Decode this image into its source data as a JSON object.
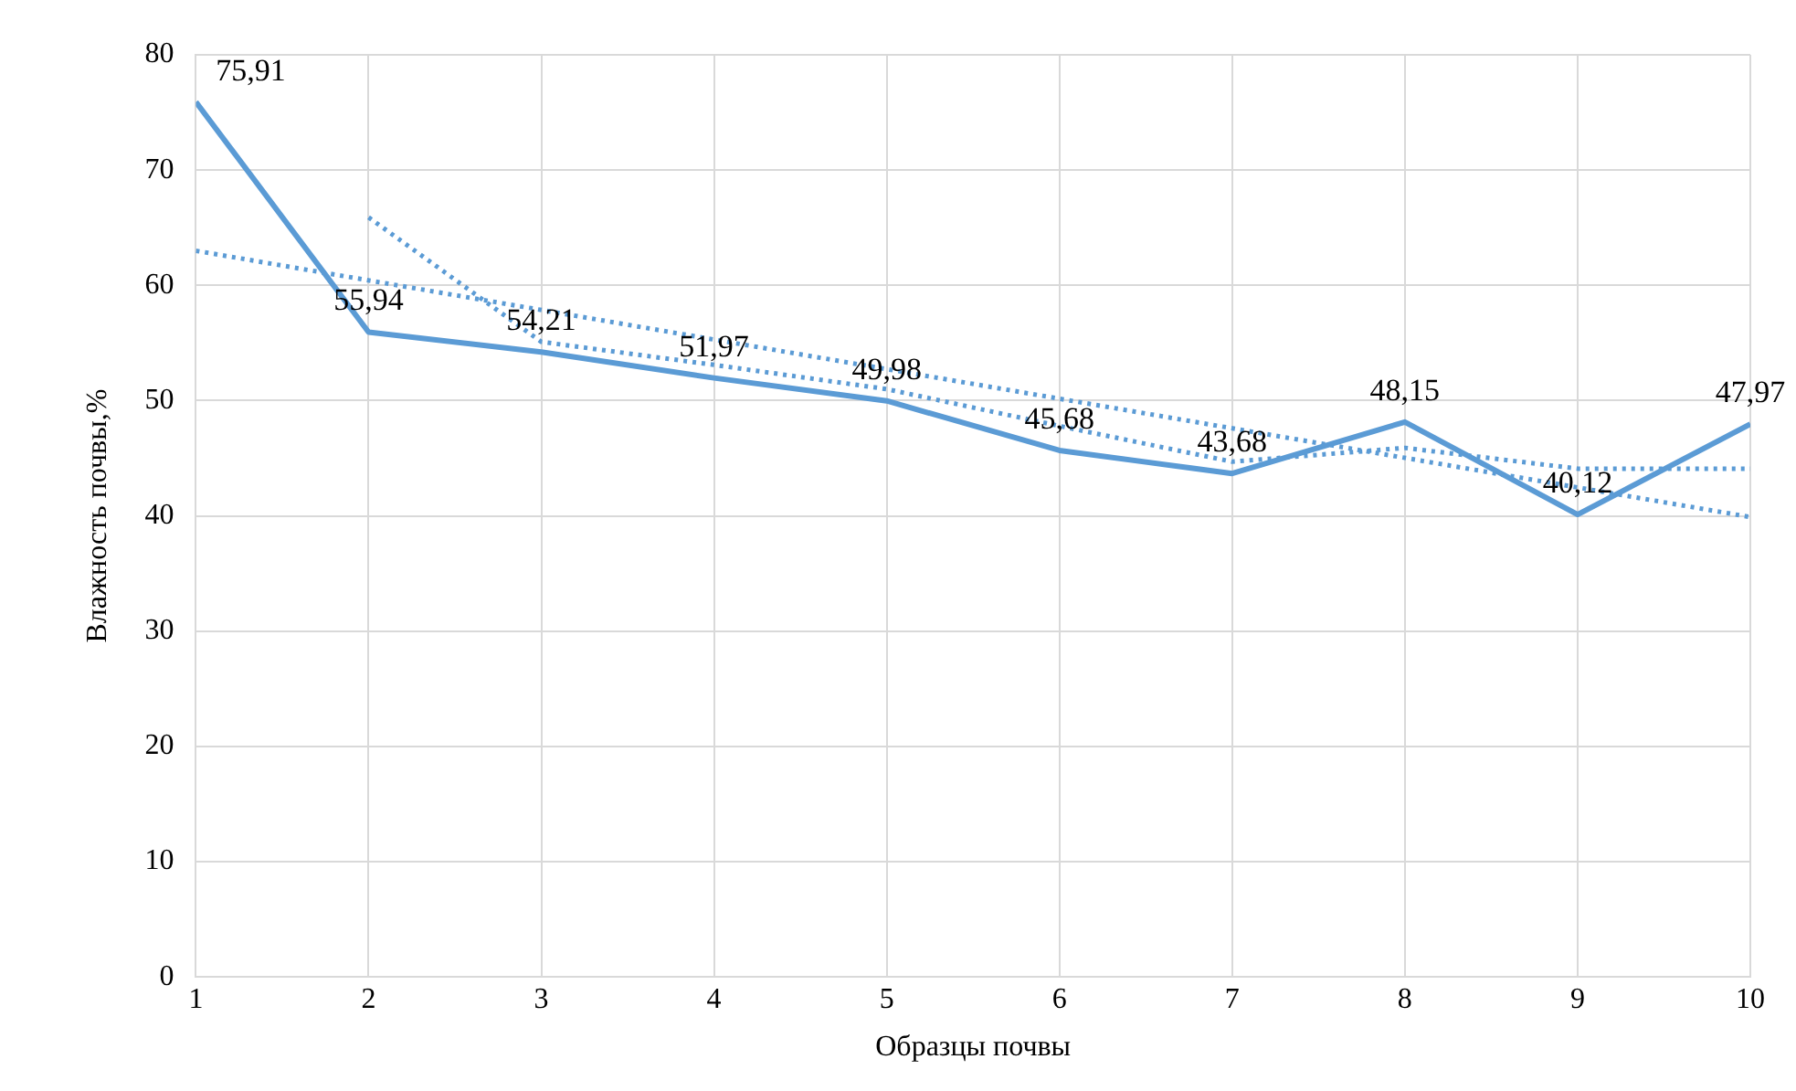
{
  "chart_data": {
    "type": "line",
    "xlabel": "Образцы почвы",
    "ylabel": "Влажность почвы,%",
    "x": [
      1,
      2,
      3,
      4,
      5,
      6,
      7,
      8,
      9,
      10
    ],
    "xlim": [
      1,
      10
    ],
    "xticks": [
      1,
      2,
      3,
      4,
      5,
      6,
      7,
      8,
      9,
      10
    ],
    "ylim": [
      0,
      80
    ],
    "yticks": [
      0,
      10,
      20,
      30,
      40,
      50,
      60,
      70,
      80
    ],
    "grid": true,
    "legend": false,
    "marker": "none",
    "series": [
      {
        "color": "#5b9bd5",
        "values": [
          75.91,
          55.94,
          54.21,
          51.97,
          49.98,
          45.68,
          43.68,
          48.15,
          40.12,
          47.97
        ],
        "value_labels": [
          "75,91",
          "55,94",
          "54,21",
          "51,97",
          "49,98",
          "45,68",
          "43,68",
          "48,15",
          "40,12",
          "47,97"
        ],
        "line_style": "solid"
      },
      {
        "type": "line",
        "color": "#5b9bd5",
        "x": [
          2,
          3,
          4,
          5,
          6,
          7,
          8,
          9,
          10
        ],
        "values": [
          65.9,
          55.1,
          53.1,
          51.0,
          47.8,
          44.7,
          45.9,
          44.1,
          44.1
        ],
        "line_style": "dotted"
      },
      {
        "type": "line",
        "color": "#5b9bd5",
        "x": [
          1,
          10
        ],
        "values": [
          63,
          39.9
        ],
        "line_style": "dotted"
      }
    ]
  }
}
